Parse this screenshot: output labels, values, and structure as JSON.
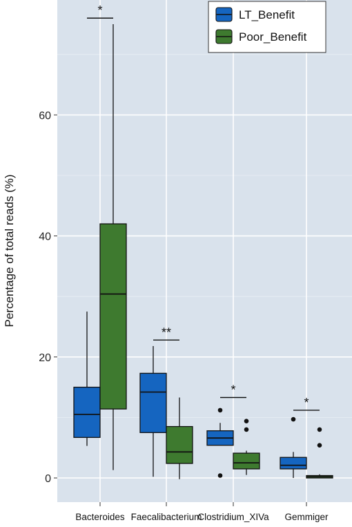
{
  "chart_data": {
    "type": "box",
    "ylabel": "Percentage of total reads (%)",
    "xlabel": "",
    "ylim": [
      -4.5,
      79
    ],
    "yticks": [
      0,
      20,
      40,
      60
    ],
    "grid": true,
    "legend_position": "top-right",
    "categories": [
      "Bacteroides",
      "Faecalibacterium",
      "Clostridium_XIVa",
      "Gemmiger"
    ],
    "series": [
      {
        "name": "LT_Benefit",
        "color": "#1565C0",
        "boxes": [
          {
            "category": "Bacteroides",
            "min": 5.3,
            "q1": 6.7,
            "median": 10.5,
            "q3": 15.0,
            "max": 27.5,
            "outliers": []
          },
          {
            "category": "Faecalibacterium",
            "min": 0.2,
            "q1": 7.5,
            "median": 14.2,
            "q3": 17.3,
            "max": 21.8,
            "outliers": []
          },
          {
            "category": "Clostridium_XIVa",
            "min": 5.4,
            "q1": 5.4,
            "median": 6.6,
            "q3": 7.8,
            "max": 9.1,
            "outliers": [
              11.2,
              0.4
            ]
          },
          {
            "category": "Gemmiger",
            "min": 0.0,
            "q1": 1.5,
            "median": 2.1,
            "q3": 3.4,
            "max": 4.3,
            "outliers": [
              9.7
            ]
          }
        ]
      },
      {
        "name": "Poor_Benefit",
        "color": "#3E7A2F",
        "boxes": [
          {
            "category": "Bacteroides",
            "min": 1.3,
            "q1": 11.4,
            "median": 30.4,
            "q3": 42.0,
            "max": 75.0,
            "outliers": []
          },
          {
            "category": "Faecalibacterium",
            "min": -0.2,
            "q1": 2.4,
            "median": 4.3,
            "q3": 8.5,
            "max": 13.3,
            "outliers": []
          },
          {
            "category": "Clostridium_XIVa",
            "min": 0.5,
            "q1": 1.5,
            "median": 2.5,
            "q3": 4.1,
            "max": 4.5,
            "outliers": [
              9.4,
              8.0
            ]
          },
          {
            "category": "Gemmiger",
            "min": 0.0,
            "q1": 0.0,
            "median": 0.2,
            "q3": 0.4,
            "max": 0.6,
            "outliers": [
              8.0,
              5.4
            ]
          }
        ]
      }
    ],
    "annotations": [
      {
        "category": "Bacteroides",
        "text": "*",
        "y": 76
      },
      {
        "category": "Faecalibacterium",
        "text": "**",
        "y": 22.8
      },
      {
        "category": "Clostridium_XIVa",
        "text": "*",
        "y": 13.3
      },
      {
        "category": "Gemmiger",
        "text": "*",
        "y": 11.2
      }
    ]
  }
}
